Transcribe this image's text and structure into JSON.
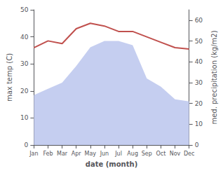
{
  "chart_data": {
    "type": "line",
    "categories": [
      "Jan",
      "Feb",
      "Mar",
      "Apr",
      "May",
      "Jun",
      "Jul",
      "Aug",
      "Sep",
      "Oct",
      "Nov",
      "Dec"
    ],
    "series": [
      {
        "type": "area",
        "color": "#c5cef0",
        "axis": "y2",
        "values": [
          24,
          27,
          30,
          38,
          47,
          50,
          50,
          48,
          32,
          28,
          22,
          21
        ]
      },
      {
        "type": "line",
        "color": "#c0504d",
        "values": [
          36,
          38.5,
          37.5,
          43,
          45,
          44,
          42,
          42,
          40,
          38,
          36,
          35.5
        ]
      }
    ],
    "xlabel": "date (month)",
    "ylabel": "max temp (C)",
    "y2label": "med. precipitation (kg/m2)",
    "ylim": [
      0,
      50
    ],
    "yticks": [
      0,
      10,
      20,
      30,
      40,
      50
    ],
    "y2lim": [
      0,
      65
    ],
    "y2ticks": [
      0,
      10,
      20,
      30,
      40,
      50,
      60
    ],
    "grid": false
  }
}
